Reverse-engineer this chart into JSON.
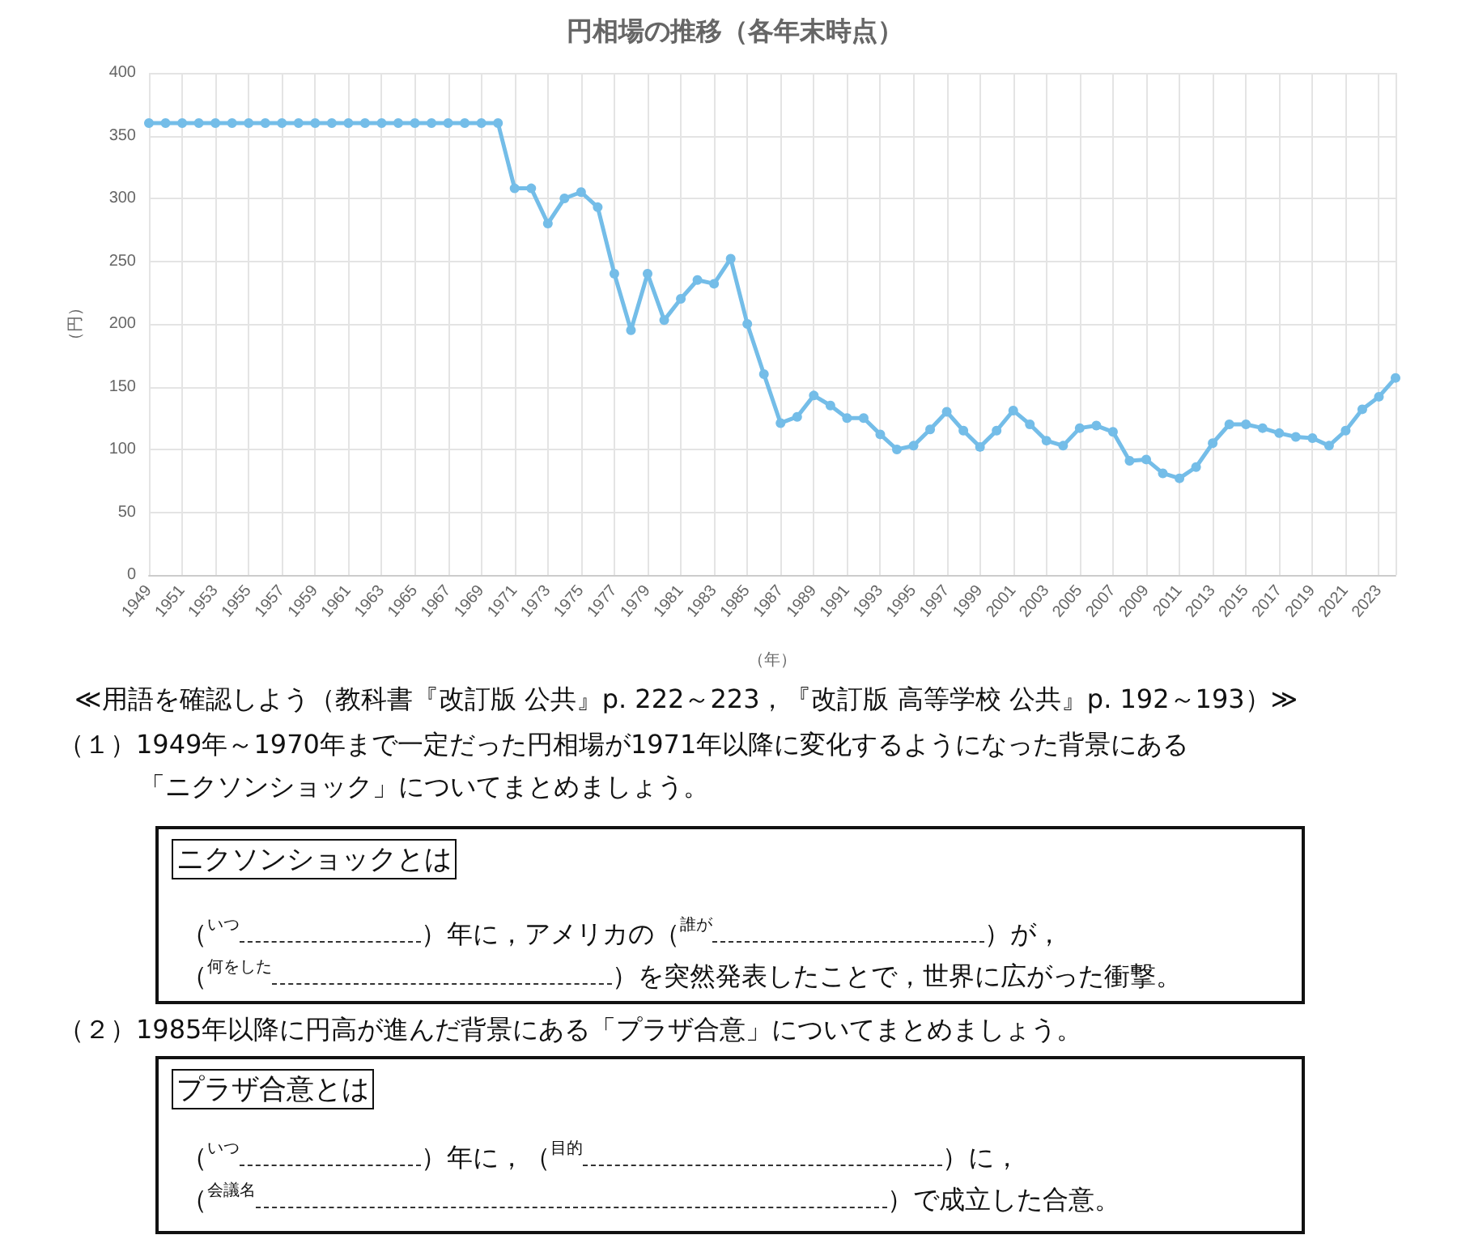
{
  "chart_data": {
    "type": "line",
    "title": "円相場の推移（各年末時点）",
    "xlabel": "（年）",
    "ylabel": "（円）",
    "categories": [
      "1949",
      null,
      "1951",
      null,
      "1953",
      null,
      "1955",
      null,
      "1957",
      null,
      "1959",
      null,
      "1961",
      null,
      "1963",
      null,
      "1965",
      null,
      "1967",
      null,
      "1969",
      null,
      "1971",
      null,
      "1973",
      null,
      "1975",
      null,
      "1977",
      null,
      "1979",
      null,
      "1981",
      null,
      "1983",
      null,
      "1985",
      null,
      "1987",
      null,
      "1989",
      null,
      "1991",
      null,
      "1993",
      null,
      "1995",
      null,
      "1997",
      null,
      "1999",
      null,
      "2001",
      null,
      "2003",
      null,
      "2005",
      null,
      "2007",
      null,
      "2009",
      null,
      "2011",
      null,
      "2013",
      null,
      "2015",
      null,
      "2017",
      null,
      "2019",
      null,
      "2021",
      null,
      "2023",
      null
    ],
    "series": [
      {
        "color": "#74bde8",
        "values": [
          360,
          360,
          360,
          360,
          360,
          360,
          360,
          360,
          360,
          360,
          360,
          360,
          360,
          360,
          360,
          360,
          360,
          360,
          360,
          360,
          360,
          360,
          308,
          308,
          280,
          300,
          305,
          293,
          240,
          195,
          240,
          203,
          220,
          235,
          232,
          252,
          200,
          160,
          121,
          126,
          143,
          135,
          125,
          125,
          112,
          100,
          103,
          116,
          130,
          115,
          102,
          115,
          131,
          120,
          107,
          103,
          117,
          119,
          114,
          91,
          92,
          81,
          77,
          86,
          105,
          120,
          120,
          117,
          113,
          110,
          109,
          103,
          115,
          132,
          142,
          157
        ]
      }
    ],
    "ylim": [
      0,
      400
    ],
    "yticks": [
      0,
      50,
      100,
      150,
      200,
      250,
      300,
      350,
      400
    ],
    "grid": true,
    "marker": "circle",
    "line_style": "solid",
    "annotations": [
      "≪用語を確認しよう（教科書『改訂版 公共』p. 222～223，『改訂版 高等学校 公共』p. 192～193）≫",
      "（１）1949年～1970年まで一定だった円相場が1971年以降に変化するようになった背景にある",
      "「ニクソンショック」についてまとめましょう。",
      "ニクソンショックとは",
      "（",
      "いつ",
      "）年に，アメリカの",
      "（",
      "誰が",
      "）が，",
      "（",
      "何をした",
      "）を突然発表したことで，世界に広がった衝撃。",
      "（２）1985年以降に円高が進んだ背景にある「プラザ合意」についてまとめましょう。",
      "プラザ合意とは",
      "（",
      "いつ",
      "）年に，",
      "（",
      "目的",
      "）に，",
      "（",
      "会議名",
      "）で成立した合意。"
    ]
  }
}
